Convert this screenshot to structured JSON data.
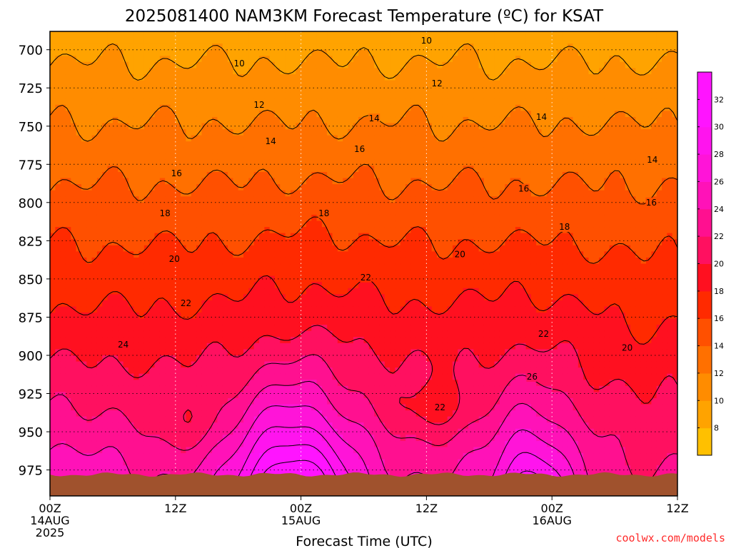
{
  "chart_data": {
    "type": "heatmap",
    "title": "2025081400 NAM3KM Forecast Temperature (ºC) for KSAT",
    "xlabel": "Forecast Time (UTC)",
    "ylabel": "",
    "x_ticks": [
      {
        "hour": 0,
        "lines": [
          "00Z",
          "14AUG",
          "2025"
        ]
      },
      {
        "hour": 12,
        "lines": [
          "12Z"
        ]
      },
      {
        "hour": 24,
        "lines": [
          "00Z",
          "15AUG"
        ]
      },
      {
        "hour": 36,
        "lines": [
          "12Z"
        ]
      },
      {
        "hour": 48,
        "lines": [
          "00Z",
          "16AUG"
        ]
      },
      {
        "hour": 60,
        "lines": [
          "12Z"
        ]
      }
    ],
    "xlim": [
      0,
      60
    ],
    "y_ticks": [
      700,
      725,
      750,
      775,
      800,
      825,
      850,
      875,
      900,
      925,
      950,
      975
    ],
    "ylim": [
      688,
      992
    ],
    "grid": true,
    "colorbar": {
      "levels": [
        8,
        10,
        12,
        14,
        16,
        18,
        20,
        22,
        24,
        26,
        28,
        30,
        32
      ],
      "colors": [
        "#ffc000",
        "#ffa300",
        "#ff8c00",
        "#ff7000",
        "#ff5000",
        "#ff2a00",
        "#ff1020",
        "#ff1060",
        "#ff1090",
        "#ff12b8",
        "#ff14d8",
        "#ff14ee",
        "#ff14ff",
        "#ff14ff"
      ]
    },
    "ground_color": "#a0522d",
    "contour_labels": [
      {
        "text": "10",
        "hour": 36.0,
        "p": 694
      },
      {
        "text": "10",
        "hour": 18.1,
        "p": 709
      },
      {
        "text": "12",
        "hour": 37.0,
        "p": 722
      },
      {
        "text": "12",
        "hour": 20.0,
        "p": 736
      },
      {
        "text": "14",
        "hour": 31.0,
        "p": 745
      },
      {
        "text": "14",
        "hour": 47.0,
        "p": 744
      },
      {
        "text": "14",
        "hour": 21.1,
        "p": 760
      },
      {
        "text": "14",
        "hour": 57.6,
        "p": 772
      },
      {
        "text": "16",
        "hour": 29.6,
        "p": 765
      },
      {
        "text": "16",
        "hour": 12.1,
        "p": 781
      },
      {
        "text": "16",
        "hour": 45.3,
        "p": 791
      },
      {
        "text": "16",
        "hour": 57.5,
        "p": 800
      },
      {
        "text": "18",
        "hour": 11.0,
        "p": 807
      },
      {
        "text": "18",
        "hour": 26.2,
        "p": 807
      },
      {
        "text": "18",
        "hour": 49.2,
        "p": 816
      },
      {
        "text": "20",
        "hour": 11.9,
        "p": 837
      },
      {
        "text": "20",
        "hour": 39.2,
        "p": 834
      },
      {
        "text": "20",
        "hour": 55.2,
        "p": 895
      },
      {
        "text": "22",
        "hour": 30.2,
        "p": 849
      },
      {
        "text": "22",
        "hour": 13.0,
        "p": 866
      },
      {
        "text": "22",
        "hour": 47.2,
        "p": 886
      },
      {
        "text": "22",
        "hour": 37.3,
        "p": 934
      },
      {
        "text": "24",
        "hour": 7.0,
        "p": 893
      },
      {
        "text": "26",
        "hour": 46.1,
        "p": 914
      }
    ]
  },
  "credit": "coolwx.com/models"
}
